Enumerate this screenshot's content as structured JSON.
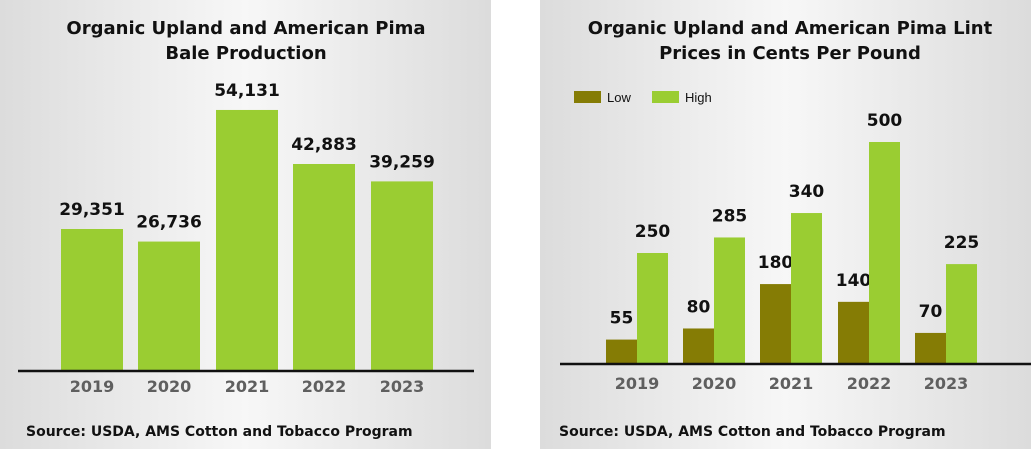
{
  "colors": {
    "high": "#9acd32",
    "low": "#857c05",
    "axis": "#111111"
  },
  "chart_data": [
    {
      "type": "bar",
      "title_lines": [
        "Organic Upland and American Pima",
        "Bale Production"
      ],
      "categories": [
        "2019",
        "2020",
        "2021",
        "2022",
        "2023"
      ],
      "values": [
        29351,
        26736,
        54131,
        42883,
        39259
      ],
      "value_labels": [
        "29,351",
        "26,736",
        "54,131",
        "42,883",
        "39,259"
      ],
      "ylim": [
        0,
        62000
      ],
      "grid": false,
      "source": "Source: USDA, AMS Cotton and Tobacco Program"
    },
    {
      "type": "bar",
      "title_lines": [
        "Organic Upland and American Pima Lint",
        "Prices in Cents Per Pound"
      ],
      "categories": [
        "2019",
        "2020",
        "2021",
        "2022",
        "2023"
      ],
      "series": [
        {
          "name": "Low",
          "values": [
            55,
            80,
            180,
            140,
            70
          ]
        },
        {
          "name": "High",
          "values": [
            250,
            285,
            340,
            500,
            225
          ]
        }
      ],
      "legend_position": "top-left",
      "ylim": [
        0,
        540
      ],
      "grid": false,
      "source": "Source: USDA, AMS Cotton and Tobacco Program"
    }
  ]
}
